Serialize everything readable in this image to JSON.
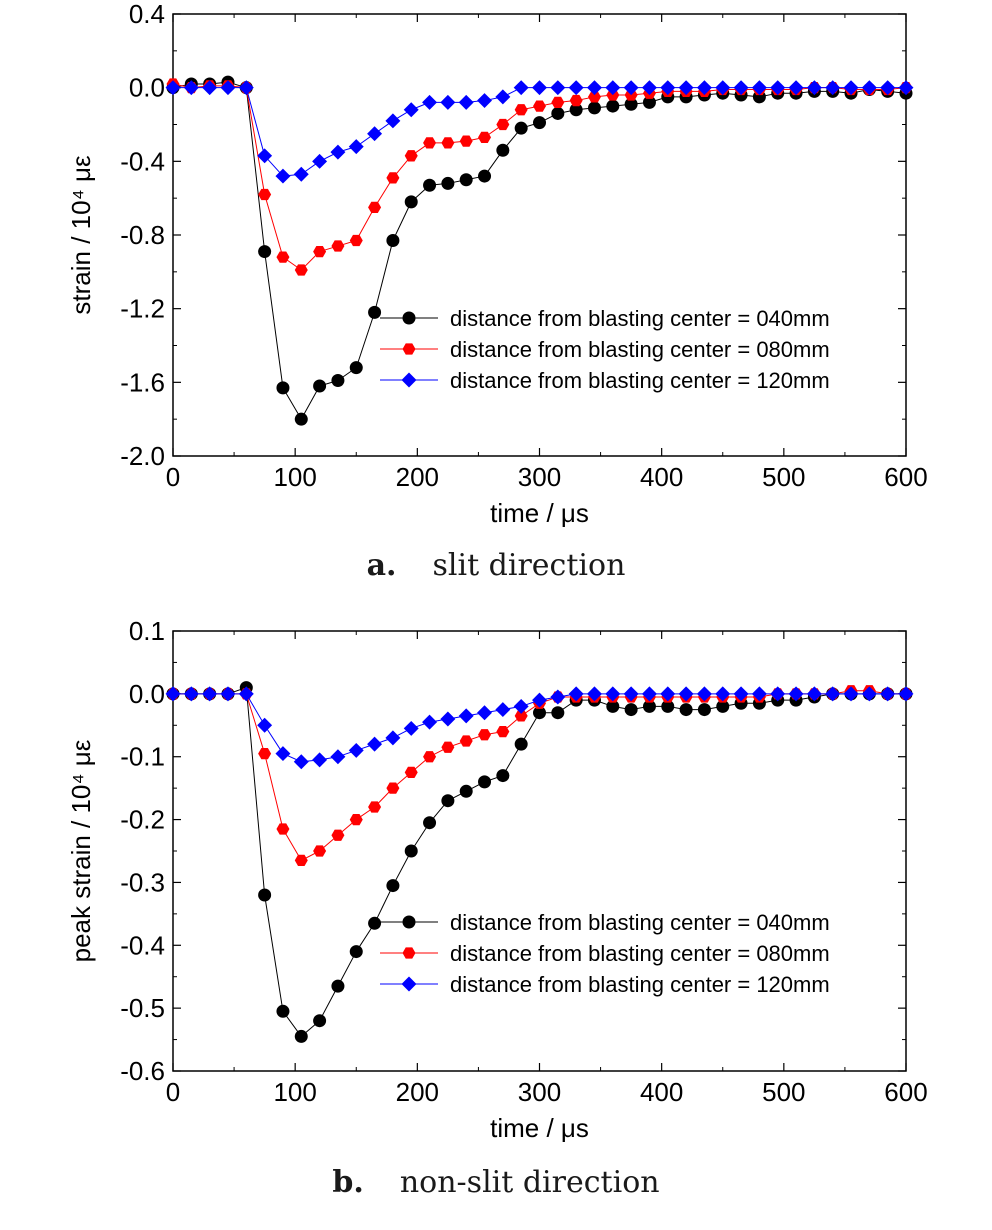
{
  "captions": [
    {
      "label": "a.",
      "text": "slit direction"
    },
    {
      "label": "b.",
      "text": "non-slit direction"
    }
  ],
  "chart_data": [
    {
      "type": "line",
      "title": "",
      "xlabel": "time / μs",
      "ylabel": "strain / 10⁴ με",
      "xlim": [
        0,
        600
      ],
      "ylim": [
        -2.0,
        0.4
      ],
      "xticks": [
        0,
        100,
        200,
        300,
        400,
        500,
        600
      ],
      "yticks": [
        0.4,
        0.0,
        -0.4,
        -0.8,
        -1.2,
        -1.6,
        -2.0
      ],
      "xtick_labels": [
        "0",
        "100",
        "200",
        "300",
        "400",
        "500",
        "600"
      ],
      "ytick_labels": [
        "0.4",
        "0.0",
        "-0.4",
        "-0.8",
        "-1.2",
        "-1.6",
        "-2.0"
      ],
      "grid": false,
      "legend_position": "lower-right",
      "x": [
        0,
        15,
        30,
        45,
        60,
        75,
        90,
        105,
        120,
        135,
        150,
        165,
        180,
        195,
        210,
        225,
        240,
        255,
        270,
        285,
        300,
        315,
        330,
        345,
        360,
        375,
        390,
        405,
        420,
        435,
        450,
        465,
        480,
        495,
        510,
        525,
        540,
        555,
        570,
        585,
        600
      ],
      "series": [
        {
          "name": "distance from blasting center = 040mm",
          "color": "#000000",
          "marker": "circle",
          "values": [
            0.0,
            0.02,
            0.02,
            0.03,
            0.0,
            -0.89,
            -1.63,
            -1.8,
            -1.62,
            -1.59,
            -1.52,
            -1.22,
            -0.83,
            -0.62,
            -0.53,
            -0.52,
            -0.5,
            -0.48,
            -0.34,
            -0.22,
            -0.19,
            -0.14,
            -0.12,
            -0.11,
            -0.1,
            -0.09,
            -0.08,
            -0.05,
            -0.05,
            -0.04,
            -0.03,
            -0.04,
            -0.05,
            -0.03,
            -0.03,
            -0.02,
            -0.02,
            -0.03,
            -0.01,
            -0.02,
            -0.03
          ]
        },
        {
          "name": "distance from blasting center = 080mm",
          "color": "#ff0000",
          "marker": "hexagon",
          "values": [
            0.02,
            0.0,
            0.01,
            0.01,
            0.0,
            -0.58,
            -0.92,
            -0.99,
            -0.89,
            -0.86,
            -0.83,
            -0.65,
            -0.49,
            -0.37,
            -0.3,
            -0.3,
            -0.29,
            -0.27,
            -0.2,
            -0.12,
            -0.1,
            -0.08,
            -0.07,
            -0.05,
            -0.04,
            -0.04,
            -0.03,
            -0.02,
            -0.02,
            -0.02,
            -0.01,
            -0.01,
            -0.01,
            -0.01,
            -0.01,
            0.0,
            0.0,
            -0.01,
            -0.01,
            -0.01,
            0.0
          ]
        },
        {
          "name": "distance from blasting center = 120mm",
          "color": "#0000ff",
          "marker": "diamond",
          "values": [
            0.0,
            0.0,
            0.0,
            0.0,
            0.0,
            -0.37,
            -0.48,
            -0.47,
            -0.4,
            -0.35,
            -0.32,
            -0.25,
            -0.18,
            -0.12,
            -0.08,
            -0.08,
            -0.08,
            -0.07,
            -0.05,
            0.0,
            0.0,
            0.0,
            0.0,
            0.0,
            0.0,
            0.0,
            0.0,
            0.0,
            0.0,
            0.0,
            0.0,
            0.0,
            0.0,
            0.0,
            0.0,
            0.0,
            0.0,
            0.0,
            0.0,
            0.0,
            0.0
          ]
        }
      ]
    },
    {
      "type": "line",
      "title": "",
      "xlabel": "time / μs",
      "ylabel": "peak strain / 10⁴ με",
      "xlim": [
        0,
        600
      ],
      "ylim": [
        -0.6,
        0.1
      ],
      "xticks": [
        0,
        100,
        200,
        300,
        400,
        500,
        600
      ],
      "yticks": [
        0.1,
        0.0,
        -0.1,
        -0.2,
        -0.3,
        -0.4,
        -0.5,
        -0.6
      ],
      "xtick_labels": [
        "0",
        "100",
        "200",
        "300",
        "400",
        "500",
        "600"
      ],
      "ytick_labels": [
        "0.1",
        "0.0",
        "-0.1",
        "-0.2",
        "-0.3",
        "-0.4",
        "-0.5",
        "-0.6"
      ],
      "grid": false,
      "legend_position": "lower-right",
      "x": [
        0,
        15,
        30,
        45,
        60,
        75,
        90,
        105,
        120,
        135,
        150,
        165,
        180,
        195,
        210,
        225,
        240,
        255,
        270,
        285,
        300,
        315,
        330,
        345,
        360,
        375,
        390,
        405,
        420,
        435,
        450,
        465,
        480,
        495,
        510,
        525,
        540,
        555,
        570,
        585,
        600
      ],
      "series": [
        {
          "name": "distance from blasting center = 040mm",
          "color": "#000000",
          "marker": "circle",
          "values": [
            0.0,
            0.0,
            0.0,
            0.0,
            0.01,
            -0.32,
            -0.505,
            -0.545,
            -0.52,
            -0.465,
            -0.41,
            -0.365,
            -0.305,
            -0.25,
            -0.205,
            -0.17,
            -0.155,
            -0.14,
            -0.13,
            -0.08,
            -0.03,
            -0.03,
            -0.01,
            -0.01,
            -0.02,
            -0.025,
            -0.02,
            -0.02,
            -0.025,
            -0.025,
            -0.02,
            -0.015,
            -0.015,
            -0.01,
            -0.01,
            -0.005,
            0.0,
            0.0,
            0.0,
            0.0,
            0.0
          ]
        },
        {
          "name": "distance from blasting center = 080mm",
          "color": "#ff0000",
          "marker": "hexagon",
          "values": [
            0.0,
            0.0,
            0.0,
            0.0,
            0.0,
            -0.095,
            -0.215,
            -0.265,
            -0.25,
            -0.225,
            -0.2,
            -0.18,
            -0.15,
            -0.125,
            -0.1,
            -0.085,
            -0.075,
            -0.065,
            -0.06,
            -0.035,
            -0.015,
            -0.005,
            -0.005,
            -0.005,
            -0.005,
            -0.005,
            -0.005,
            -0.005,
            -0.005,
            -0.005,
            -0.005,
            -0.005,
            -0.005,
            0.0,
            0.0,
            0.0,
            0.0,
            0.005,
            0.005,
            0.0,
            0.0
          ]
        },
        {
          "name": "distance from blasting center = 120mm",
          "color": "#0000ff",
          "marker": "diamond",
          "values": [
            0.0,
            0.0,
            0.0,
            0.0,
            0.0,
            -0.05,
            -0.095,
            -0.108,
            -0.105,
            -0.1,
            -0.09,
            -0.08,
            -0.07,
            -0.055,
            -0.045,
            -0.04,
            -0.035,
            -0.03,
            -0.025,
            -0.02,
            -0.01,
            -0.005,
            0.0,
            0.0,
            0.0,
            0.0,
            0.0,
            0.0,
            0.0,
            0.0,
            0.0,
            0.0,
            0.0,
            0.0,
            0.0,
            0.0,
            0.0,
            0.0,
            0.0,
            0.0,
            0.0
          ]
        }
      ]
    }
  ]
}
